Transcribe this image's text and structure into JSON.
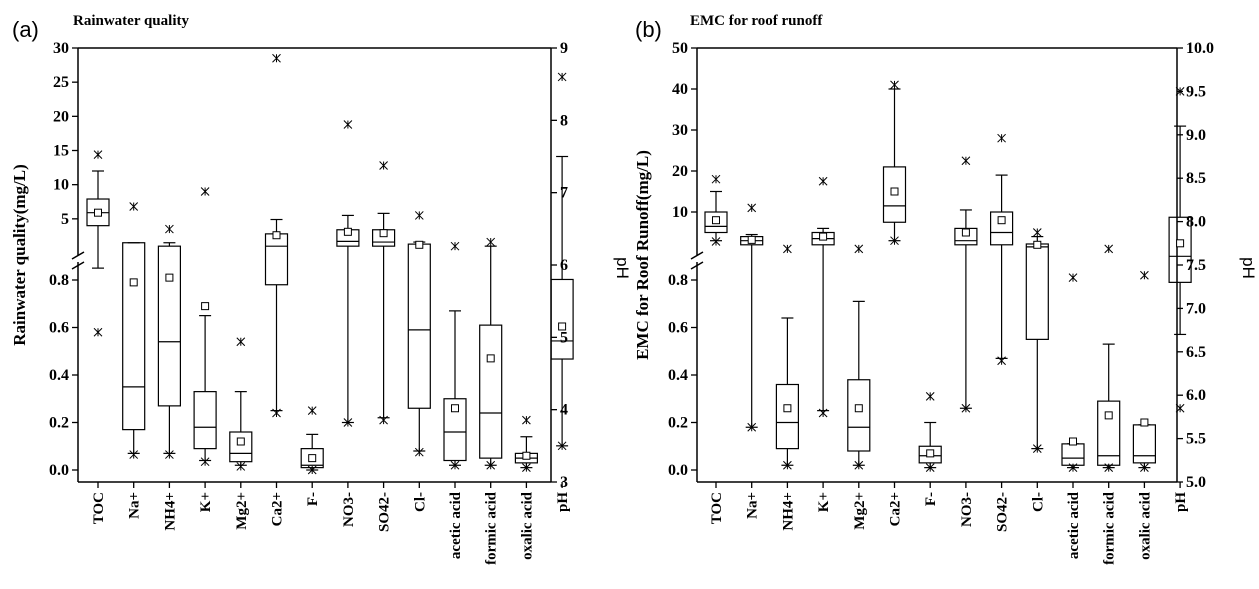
{
  "chart_data": [
    {
      "type": "box",
      "panel_label": "(a)",
      "title": "Rainwater quality",
      "ylabel": "Rainwater quality(mg/L)",
      "y2label": "pH",
      "ylim_lower": [
        0,
        0.85
      ],
      "ylim_upper": [
        0,
        30
      ],
      "y_break": true,
      "yticks_lower": [
        "0.0",
        "0.2",
        "0.4",
        "0.6",
        "0.8"
      ],
      "yticks_upper": [
        "5",
        "10",
        "15",
        "20",
        "25",
        "30"
      ],
      "y2lim": [
        3,
        9
      ],
      "y2ticks": [
        "3",
        "4",
        "5",
        "6",
        "7",
        "8",
        "9"
      ],
      "categories": [
        "TOC",
        "Na+",
        "NH4+",
        "K+",
        "Mg2+",
        "Ca2+",
        "F-",
        "NO3-",
        "SO42-",
        "Cl-",
        "acetic acid",
        "formic acid",
        "oxalic acid",
        "pH"
      ],
      "boxes": [
        {
          "axis": "left",
          "q1": 4.0,
          "median": 5.9,
          "q3": 7.9,
          "whisker_low": 0.85,
          "whisker_high": 12.0,
          "mean": 5.9,
          "min": 0.58,
          "max": 14.4
        },
        {
          "axis": "left",
          "q1": 0.17,
          "median": 0.35,
          "q3": 1.5,
          "whisker_low": 0.07,
          "whisker_high": 1.5,
          "mean": 0.79,
          "min": 0.065,
          "max": 6.8
        },
        {
          "axis": "left",
          "q1": 0.27,
          "median": 0.54,
          "q3": 1.0,
          "whisker_low": 0.07,
          "whisker_high": 1.5,
          "mean": 0.81,
          "min": 0.065,
          "max": 3.5
        },
        {
          "axis": "left",
          "q1": 0.09,
          "median": 0.18,
          "q3": 0.33,
          "whisker_low": 0.04,
          "whisker_high": 0.65,
          "mean": 0.69,
          "min": 0.035,
          "max": 9.0
        },
        {
          "axis": "left",
          "q1": 0.035,
          "median": 0.07,
          "q3": 0.16,
          "whisker_low": 0.02,
          "whisker_high": 0.33,
          "mean": 0.12,
          "min": 0.015,
          "max": 0.54
        },
        {
          "axis": "left",
          "q1": 0.78,
          "median": 1.0,
          "q3": 2.8,
          "whisker_low": 0.25,
          "whisker_high": 4.9,
          "mean": 2.6,
          "min": 0.24,
          "max": 28.5
        },
        {
          "axis": "left",
          "q1": 0.01,
          "median": 0.02,
          "q3": 0.09,
          "whisker_low": 0.0,
          "whisker_high": 0.15,
          "mean": 0.05,
          "min": 0.0,
          "max": 0.25
        },
        {
          "axis": "left",
          "q1": 1.0,
          "median": 1.7,
          "q3": 3.4,
          "whisker_low": 0.2,
          "whisker_high": 5.5,
          "mean": 3.1,
          "min": 0.2,
          "max": 18.8
        },
        {
          "axis": "left",
          "q1": 1.0,
          "median": 1.6,
          "q3": 3.4,
          "whisker_low": 0.22,
          "whisker_high": 5.8,
          "mean": 2.9,
          "min": 0.21,
          "max": 12.8
        },
        {
          "axis": "left",
          "q1": 0.26,
          "median": 0.59,
          "q3": 1.3,
          "whisker_low": 0.08,
          "whisker_high": 1.6,
          "mean": 1.2,
          "min": 0.075,
          "max": 5.5
        },
        {
          "axis": "left",
          "q1": 0.04,
          "median": 0.16,
          "q3": 0.3,
          "whisker_low": 0.02,
          "whisker_high": 0.67,
          "mean": 0.26,
          "min": 0.02,
          "max": 1.0
        },
        {
          "axis": "left",
          "q1": 0.05,
          "median": 0.24,
          "q3": 0.61,
          "whisker_low": 0.02,
          "whisker_high": 1.0,
          "mean": 0.47,
          "min": 0.02,
          "max": 1.6
        },
        {
          "axis": "left",
          "q1": 0.03,
          "median": 0.05,
          "q3": 0.07,
          "whisker_low": 0.01,
          "whisker_high": 0.14,
          "mean": 0.06,
          "min": 0.01,
          "max": 0.21
        },
        {
          "axis": "right",
          "q1": 4.7,
          "median": 4.95,
          "q3": 5.8,
          "whisker_low": 3.5,
          "whisker_high": 7.5,
          "mean": 5.15,
          "min": 3.5,
          "max": 8.6
        }
      ]
    },
    {
      "type": "box",
      "panel_label": "(b)",
      "title": "EMC for roof runoff",
      "ylabel": "EMC for Roof Runoff(mg/L)",
      "y2label": "pH",
      "ylim_lower": [
        0,
        0.85
      ],
      "ylim_upper": [
        0,
        50
      ],
      "y_break": true,
      "yticks_lower": [
        "0.0",
        "0.2",
        "0.4",
        "0.6",
        "0.8"
      ],
      "yticks_upper": [
        "10",
        "20",
        "30",
        "40",
        "50"
      ],
      "y2lim": [
        5.0,
        10.0
      ],
      "y2ticks": [
        "5.0",
        "5.5",
        "6.0",
        "6.5",
        "7.0",
        "7.5",
        "8.0",
        "8.5",
        "9.0",
        "9.5",
        "10.0"
      ],
      "categories": [
        "TOC",
        "Na+",
        "NH4+",
        "K+",
        "Mg2+",
        "Ca2+",
        "F-",
        "NO3-",
        "SO42-",
        "Cl-",
        "acetic acid",
        "formic acid",
        "oxalic acid",
        "pH"
      ],
      "boxes": [
        {
          "axis": "left",
          "q1": 5.0,
          "median": 6.5,
          "q3": 10.0,
          "whisker_low": 3.0,
          "whisker_high": 15.0,
          "mean": 8.0,
          "min": 2.8,
          "max": 18.0
        },
        {
          "axis": "left",
          "q1": 2.0,
          "median": 3.0,
          "q3": 4.0,
          "whisker_low": 0.18,
          "whisker_high": 4.5,
          "mean": 3.2,
          "min": 0.18,
          "max": 11.0
        },
        {
          "axis": "left",
          "q1": 0.09,
          "median": 0.2,
          "q3": 0.36,
          "whisker_low": 0.02,
          "whisker_high": 0.64,
          "mean": 0.26,
          "min": 0.02,
          "max": 1.0
        },
        {
          "axis": "left",
          "q1": 2.0,
          "median": 3.5,
          "q3": 5.0,
          "whisker_low": 0.25,
          "whisker_high": 6.0,
          "mean": 4.0,
          "min": 0.24,
          "max": 17.5
        },
        {
          "axis": "left",
          "q1": 0.08,
          "median": 0.18,
          "q3": 0.38,
          "whisker_low": 0.02,
          "whisker_high": 0.71,
          "mean": 0.26,
          "min": 0.02,
          "max": 1.0
        },
        {
          "axis": "left",
          "q1": 7.5,
          "median": 11.5,
          "q3": 21.0,
          "whisker_low": 3.0,
          "whisker_high": 40.0,
          "mean": 15.0,
          "min": 3.0,
          "max": 41.0
        },
        {
          "axis": "left",
          "q1": 0.03,
          "median": 0.06,
          "q3": 0.1,
          "whisker_low": 0.01,
          "whisker_high": 0.2,
          "mean": 0.07,
          "min": 0.01,
          "max": 0.31
        },
        {
          "axis": "left",
          "q1": 2.0,
          "median": 3.0,
          "q3": 6.0,
          "whisker_low": 0.26,
          "whisker_high": 10.5,
          "mean": 5.0,
          "min": 0.26,
          "max": 22.5
        },
        {
          "axis": "left",
          "q1": 2.0,
          "median": 5.0,
          "q3": 10.0,
          "whisker_low": 0.47,
          "whisker_high": 19.0,
          "mean": 8.0,
          "min": 0.46,
          "max": 28.0
        },
        {
          "axis": "left",
          "q1": 0.55,
          "median": 1.5,
          "q3": 2.2,
          "whisker_low": 0.09,
          "whisker_high": 4.0,
          "mean": 2.0,
          "min": 0.09,
          "max": 5.0
        },
        {
          "axis": "left",
          "q1": 0.02,
          "median": 0.05,
          "q3": 0.11,
          "whisker_low": 0.01,
          "whisker_high": 0.11,
          "mean": 0.12,
          "min": 0.01,
          "max": 0.81
        },
        {
          "axis": "left",
          "q1": 0.02,
          "median": 0.06,
          "q3": 0.29,
          "whisker_low": 0.01,
          "whisker_high": 0.53,
          "mean": 0.23,
          "min": 0.01,
          "max": 1.0
        },
        {
          "axis": "left",
          "q1": 0.03,
          "median": 0.06,
          "q3": 0.19,
          "whisker_low": 0.01,
          "whisker_high": 0.19,
          "mean": 0.2,
          "min": 0.01,
          "max": 0.82
        },
        {
          "axis": "right",
          "q1": 7.3,
          "median": 7.6,
          "q3": 8.05,
          "whisker_low": 6.7,
          "whisker_high": 9.1,
          "mean": 7.75,
          "min": 5.85,
          "max": 9.5
        }
      ]
    }
  ]
}
